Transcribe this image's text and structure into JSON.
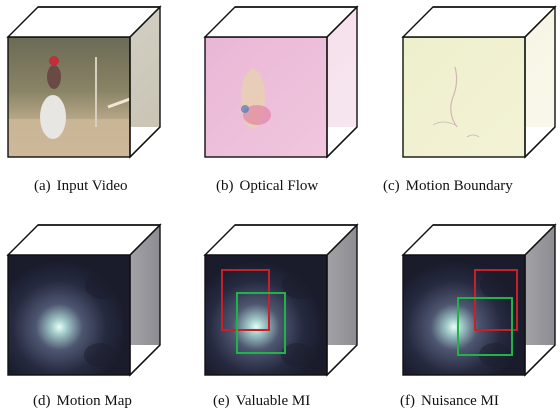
{
  "panels": [
    {
      "id": "a",
      "label": "(a)",
      "caption": "Input Video",
      "face": "video"
    },
    {
      "id": "b",
      "label": "(b)",
      "caption": "Optical Flow",
      "face": "flow"
    },
    {
      "id": "c",
      "label": "(c)",
      "caption": "Motion Boundary",
      "face": "boundary"
    },
    {
      "id": "d",
      "label": "(d)",
      "caption": "Motion Map",
      "face": "map"
    },
    {
      "id": "e",
      "label": "(e)",
      "caption": "Valuable MI",
      "face": "map",
      "boxes": [
        "red",
        "green"
      ]
    },
    {
      "id": "f",
      "label": "(f)",
      "caption": "Nuisance MI",
      "face": "map",
      "boxes": [
        "red",
        "green"
      ]
    }
  ],
  "colors": {
    "red_box": "#c8202a",
    "green_box": "#1fb34a",
    "cube_edge": "#111111"
  }
}
